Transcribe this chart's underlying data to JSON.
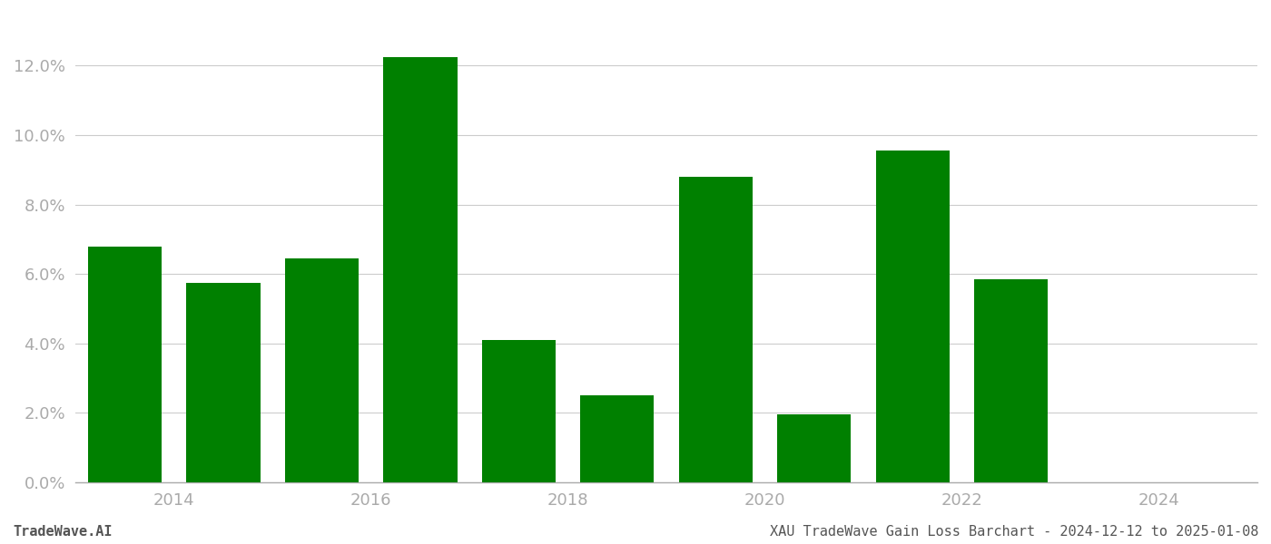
{
  "bar_positions": [
    2013.5,
    2014.5,
    2015.5,
    2016.5,
    2017.5,
    2018.5,
    2019.5,
    2020.5,
    2021.5,
    2022.5,
    2023.5
  ],
  "values": [
    0.068,
    0.0575,
    0.0645,
    0.1225,
    0.041,
    0.025,
    0.088,
    0.0195,
    0.0955,
    0.0585,
    0.0
  ],
  "bar_color": "#008000",
  "background_color": "#ffffff",
  "ytick_values": [
    0.0,
    0.02,
    0.04,
    0.06,
    0.08,
    0.1,
    0.12
  ],
  "xtick_positions": [
    2014,
    2016,
    2018,
    2020,
    2022,
    2024
  ],
  "xtick_labels": [
    "2014",
    "2016",
    "2018",
    "2020",
    "2022",
    "2024"
  ],
  "xlim": [
    2013.0,
    2025.0
  ],
  "ylim": [
    0,
    0.135
  ],
  "grid_color": "#cccccc",
  "axis_color": "#aaaaaa",
  "tick_label_color": "#aaaaaa",
  "footer_left": "TradeWave.AI",
  "footer_right": "XAU TradeWave Gain Loss Barchart - 2024-12-12 to 2025-01-08",
  "footer_fontsize": 11,
  "bar_width": 0.75
}
